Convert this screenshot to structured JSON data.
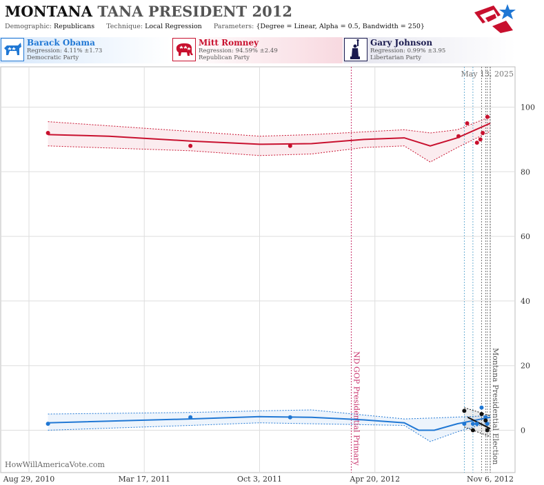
{
  "header": {
    "title_state": "MONTANA",
    "title_race": "TANA PRESIDENT",
    "title_year": "2012",
    "demographic_label": "Demographic:",
    "demographic_value": "Republicans",
    "technique_label": "Technique:",
    "technique_value": "Local Regression",
    "parameters_label": "Parameters:",
    "parameters_value": "{Degree = Linear, Alpha = 0.5, Bandwidth = 250}"
  },
  "candidates": [
    {
      "name": "Barack Obama",
      "regression": "Regression: 4.11% ±1.73",
      "party": "Democratic Party",
      "color": "#1f77d4",
      "icon": "donkey-icon"
    },
    {
      "name": "Mitt Romney",
      "regression": "Regression: 94.59% ±2.49",
      "party": "Republican Party",
      "color": "#c8102e",
      "icon": "elephant-icon"
    },
    {
      "name": "Gary Johnson",
      "regression": "Regression: 0.99% ±3.95",
      "party": "Libertarian Party",
      "color": "#1a1a4e",
      "icon": "statue-of-liberty-icon"
    }
  ],
  "chart_data": {
    "type": "line",
    "date_stamp": "May 13, 2025",
    "watermark": "HowWillAmericaVote.com",
    "x_ticks": [
      "Aug 29, 2010",
      "Mar 17, 2011",
      "Oct 3, 2011",
      "Apr 20, 2012",
      "Nov 6, 2012"
    ],
    "y_ticks": [
      0,
      20,
      40,
      60,
      80,
      100
    ],
    "ylim": [
      -8,
      112
    ],
    "grid": true,
    "events": [
      {
        "label": "ND GOP Presidential Primary",
        "date": "2012-03-10",
        "color": "#c8306a"
      },
      {
        "label": "Montana Presidential Election",
        "date": "2012-11-06",
        "color": "#555555"
      }
    ],
    "series": [
      {
        "name": "Mitt Romney",
        "color": "#c8102e",
        "points": [
          {
            "x": "2010-10-01",
            "y": 92
          },
          {
            "x": "2011-06-05",
            "y": 88
          },
          {
            "x": "2011-11-25",
            "y": 88
          },
          {
            "x": "2012-09-12",
            "y": 91
          },
          {
            "x": "2012-09-27",
            "y": 95
          },
          {
            "x": "2012-10-14",
            "y": 89
          },
          {
            "x": "2012-10-20",
            "y": 90
          },
          {
            "x": "2012-10-24",
            "y": 92
          },
          {
            "x": "2012-11-01",
            "y": 97
          }
        ],
        "trend": [
          {
            "x": "2010-10-01",
            "y": 91.5
          },
          {
            "x": "2011-01-15",
            "y": 91
          },
          {
            "x": "2011-06-05",
            "y": 89.5
          },
          {
            "x": "2011-10-03",
            "y": 88.5
          },
          {
            "x": "2012-01-01",
            "y": 88.7
          },
          {
            "x": "2012-04-01",
            "y": 90
          },
          {
            "x": "2012-06-10",
            "y": 90.5
          },
          {
            "x": "2012-07-25",
            "y": 88
          },
          {
            "x": "2012-09-10",
            "y": 90.5
          },
          {
            "x": "2012-11-06",
            "y": 95
          }
        ],
        "upper": [
          {
            "x": "2010-10-01",
            "y": 95.5
          },
          {
            "x": "2011-06-05",
            "y": 92.5
          },
          {
            "x": "2011-10-03",
            "y": 91
          },
          {
            "x": "2012-01-01",
            "y": 91.5
          },
          {
            "x": "2012-06-10",
            "y": 93
          },
          {
            "x": "2012-07-25",
            "y": 92
          },
          {
            "x": "2012-09-10",
            "y": 93
          },
          {
            "x": "2012-11-06",
            "y": 97
          }
        ],
        "lower": [
          {
            "x": "2010-10-01",
            "y": 88
          },
          {
            "x": "2011-06-05",
            "y": 86.5
          },
          {
            "x": "2011-10-03",
            "y": 85
          },
          {
            "x": "2012-01-01",
            "y": 85.5
          },
          {
            "x": "2012-04-01",
            "y": 87.5
          },
          {
            "x": "2012-06-10",
            "y": 88
          },
          {
            "x": "2012-07-25",
            "y": 83
          },
          {
            "x": "2012-09-10",
            "y": 87.5
          },
          {
            "x": "2012-11-06",
            "y": 92.5
          }
        ]
      },
      {
        "name": "Barack Obama",
        "color": "#1f77d4",
        "points": [
          {
            "x": "2010-10-01",
            "y": 2
          },
          {
            "x": "2011-06-05",
            "y": 4
          },
          {
            "x": "2011-11-25",
            "y": 4
          },
          {
            "x": "2012-09-22",
            "y": 2
          },
          {
            "x": "2012-10-07",
            "y": 2
          },
          {
            "x": "2012-10-14",
            "y": 2
          },
          {
            "x": "2012-10-22",
            "y": 7
          },
          {
            "x": "2012-10-29",
            "y": 4
          },
          {
            "x": "2012-11-01",
            "y": 2
          }
        ],
        "trend": [
          {
            "x": "2010-10-01",
            "y": 2.3
          },
          {
            "x": "2011-06-05",
            "y": 3.5
          },
          {
            "x": "2011-10-03",
            "y": 4.2
          },
          {
            "x": "2012-01-01",
            "y": 4
          },
          {
            "x": "2012-04-01",
            "y": 3.2
          },
          {
            "x": "2012-06-10",
            "y": 2.3
          },
          {
            "x": "2012-07-05",
            "y": 0
          },
          {
            "x": "2012-08-01",
            "y": 0
          },
          {
            "x": "2012-09-10",
            "y": 2
          },
          {
            "x": "2012-11-06",
            "y": 4
          }
        ],
        "upper": [
          {
            "x": "2010-10-01",
            "y": 5
          },
          {
            "x": "2011-06-05",
            "y": 5.5
          },
          {
            "x": "2011-10-03",
            "y": 6
          },
          {
            "x": "2012-01-01",
            "y": 6.3
          },
          {
            "x": "2012-06-10",
            "y": 3.5
          },
          {
            "x": "2012-08-01",
            "y": 3.8
          },
          {
            "x": "2012-11-06",
            "y": 4.5
          }
        ],
        "lower": [
          {
            "x": "2010-10-01",
            "y": 0
          },
          {
            "x": "2011-06-05",
            "y": 1.5
          },
          {
            "x": "2011-10-03",
            "y": 2.3
          },
          {
            "x": "2012-01-01",
            "y": 2
          },
          {
            "x": "2012-06-10",
            "y": 1.5
          },
          {
            "x": "2012-07-25",
            "y": -3.5
          },
          {
            "x": "2012-09-10",
            "y": -0.5
          },
          {
            "x": "2012-11-06",
            "y": 2.5
          }
        ]
      },
      {
        "name": "Gary Johnson",
        "color": "#111111",
        "points": [
          {
            "x": "2012-09-22",
            "y": 6
          },
          {
            "x": "2012-10-07",
            "y": 0
          },
          {
            "x": "2012-10-22",
            "y": 5
          },
          {
            "x": "2012-10-29",
            "y": 3
          },
          {
            "x": "2012-11-01",
            "y": 0
          }
        ],
        "trend": [
          {
            "x": "2012-09-28",
            "y": 4
          },
          {
            "x": "2012-11-06",
            "y": 0.5
          }
        ],
        "upper": [
          {
            "x": "2012-09-22",
            "y": 7
          },
          {
            "x": "2012-11-06",
            "y": 4.5
          }
        ],
        "lower": [
          {
            "x": "2012-09-22",
            "y": 1
          },
          {
            "x": "2012-11-06",
            "y": -2
          }
        ]
      }
    ]
  }
}
